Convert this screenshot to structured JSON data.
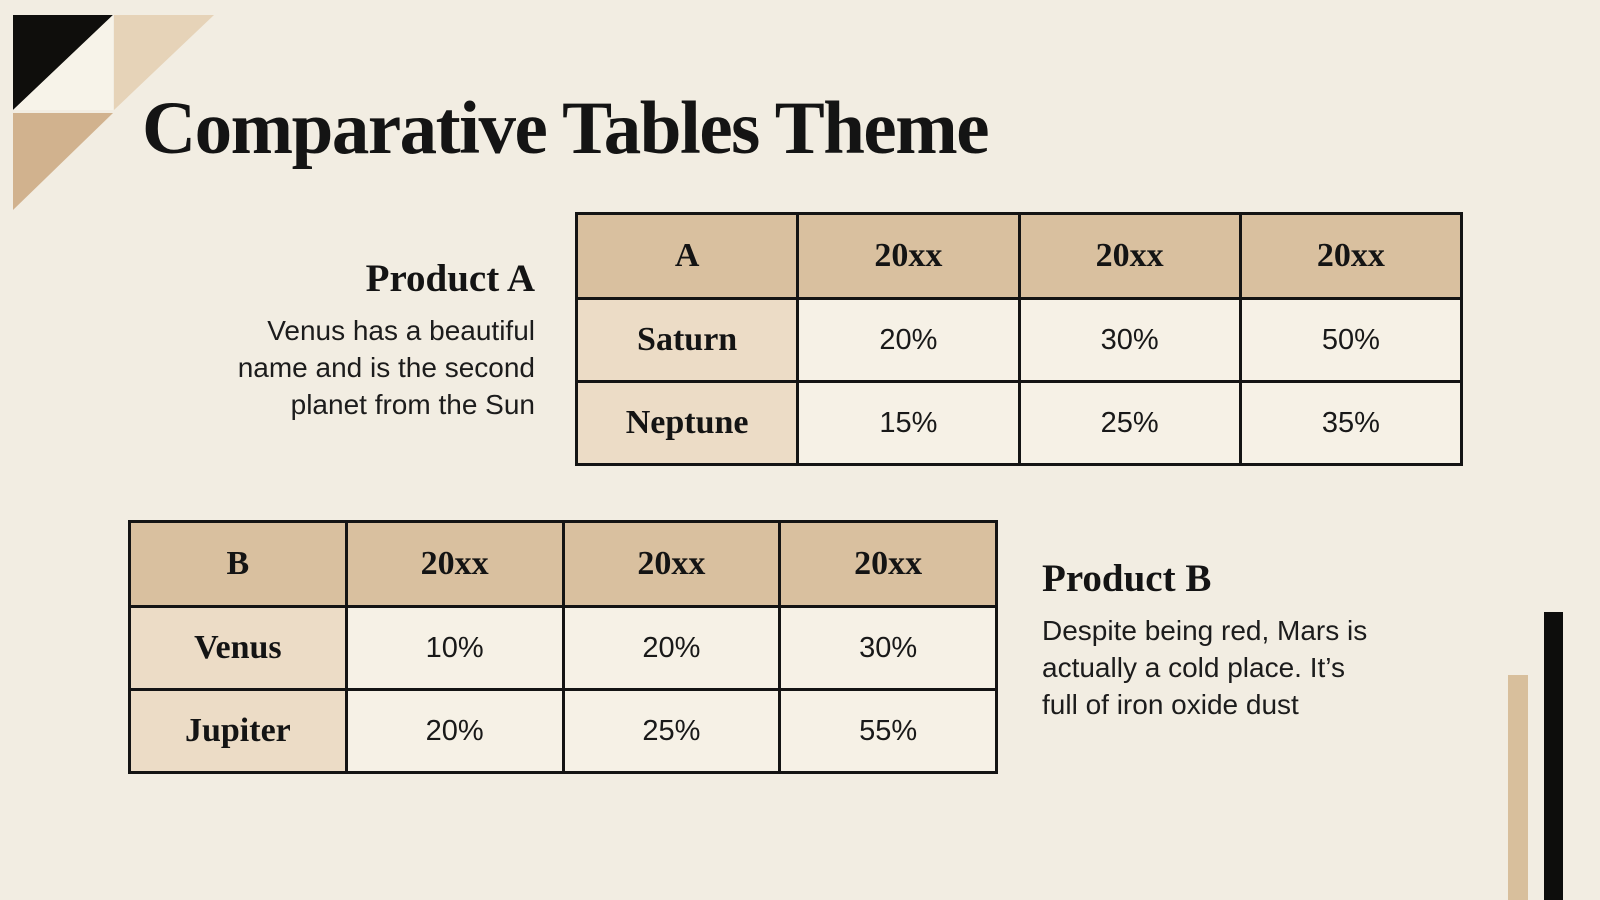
{
  "title": "Comparative Tables Theme",
  "colors": {
    "background": "#f2ede2",
    "ink": "#141414",
    "table_header_fill": "#d9c09f",
    "table_label_fill": "#ecdcc6",
    "table_cell_fill": "#f6f1e6",
    "corner_black": "#0f0e0c",
    "corner_ivory": "#f7f3e9",
    "corner_tan_light": "#e6d3b8",
    "corner_tan_dark": "#d1b28e",
    "bar_tan": "#d8bf9c",
    "bar_black": "#0d0d0c"
  },
  "product_a": {
    "heading": "Product A",
    "body_lines": [
      "Venus has a beautiful",
      "name and is the second",
      "planet from the Sun"
    ]
  },
  "product_b": {
    "heading": "Product B",
    "body_lines": [
      "Despite being red, Mars is",
      "actually a cold place. It’s",
      "full of iron oxide dust"
    ]
  },
  "table_a": {
    "header": [
      "A",
      "20xx",
      "20xx",
      "20xx"
    ],
    "rows": [
      {
        "label": "Saturn",
        "values": [
          "20%",
          "30%",
          "50%"
        ]
      },
      {
        "label": "Neptune",
        "values": [
          "15%",
          "25%",
          "35%"
        ]
      }
    ]
  },
  "table_b": {
    "header": [
      "B",
      "20xx",
      "20xx",
      "20xx"
    ],
    "rows": [
      {
        "label": "Venus",
        "values": [
          "10%",
          "20%",
          "30%"
        ]
      },
      {
        "label": "Jupiter",
        "values": [
          "20%",
          "25%",
          "55%"
        ]
      }
    ]
  }
}
